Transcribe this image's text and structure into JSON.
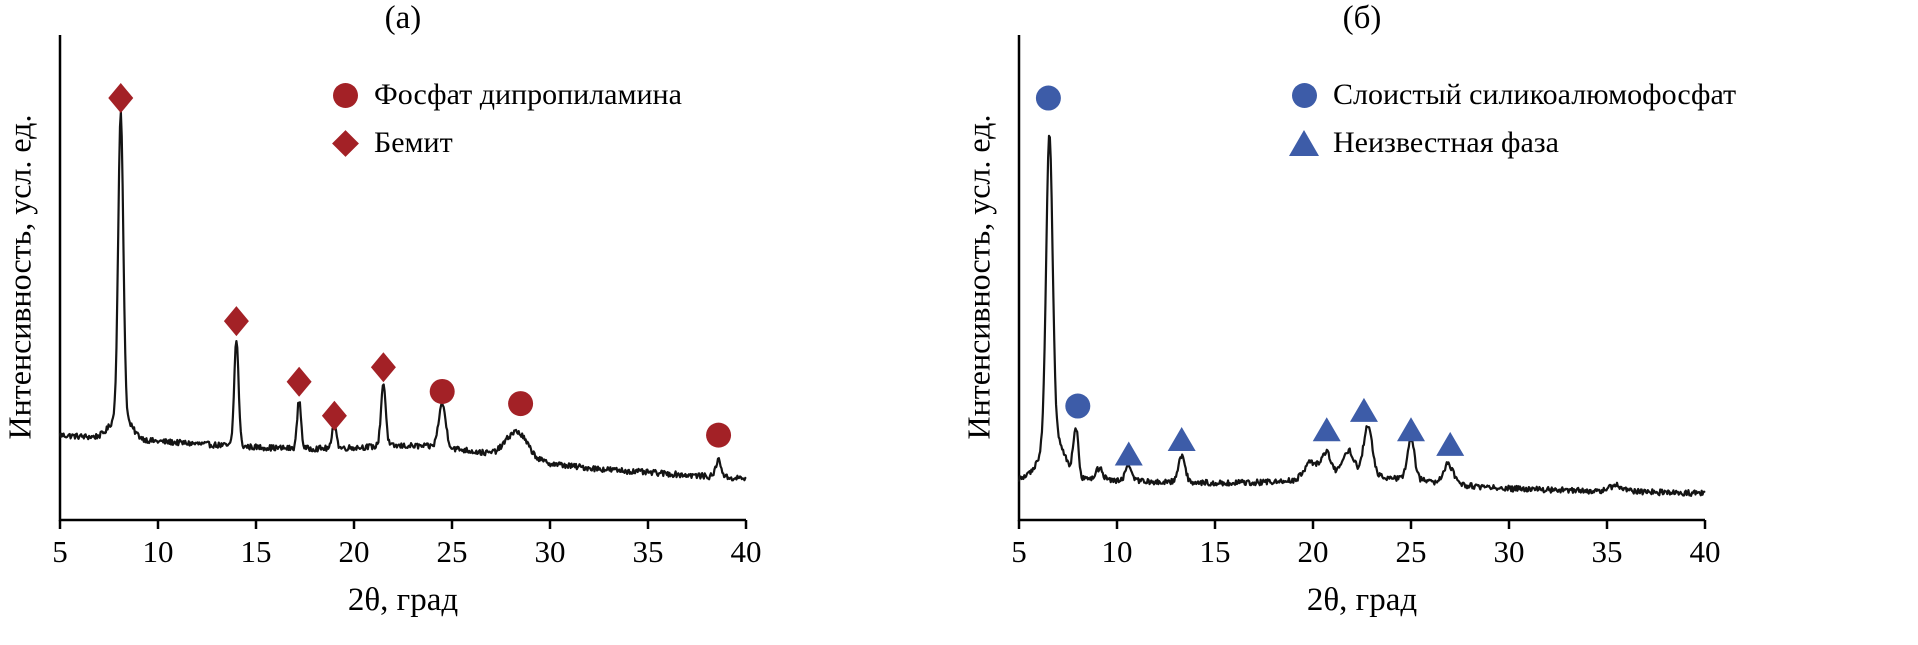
{
  "colors": {
    "red": "#a32126",
    "blue": "#3d5ca8",
    "trace": "#141414",
    "axis": "#000000"
  },
  "chart_data": [
    {
      "type": "line",
      "panel": "a",
      "title": "(а)",
      "xlabel": "2θ, град",
      "ylabel": "Интенсивность, усл. ед.",
      "xlim": [
        5,
        40
      ],
      "ylim": [
        0,
        1
      ],
      "xticks": [
        5,
        10,
        15,
        20,
        25,
        30,
        35,
        40
      ],
      "grid": false,
      "legend_loc": "upper left inside",
      "series_color_key": "red",
      "legend": [
        {
          "marker": "circle",
          "label": "Фосфат дипропиламина",
          "color_key": "red"
        },
        {
          "marker": "diamond",
          "label": "Бемит",
          "color_key": "red"
        }
      ],
      "baseline": {
        "start": 0.175,
        "end": 0.085
      },
      "noise": 0.006,
      "peaks": [
        {
          "x": 8.1,
          "h": 0.62,
          "w": 0.13
        },
        {
          "x": 8.1,
          "h": 0.05,
          "w": 0.5
        },
        {
          "x": 14.0,
          "h": 0.22,
          "w": 0.11
        },
        {
          "x": 17.2,
          "h": 0.1,
          "w": 0.1
        },
        {
          "x": 19.0,
          "h": 0.055,
          "w": 0.1
        },
        {
          "x": 21.5,
          "h": 0.13,
          "w": 0.12
        },
        {
          "x": 24.5,
          "h": 0.09,
          "w": 0.18
        },
        {
          "x": 28.3,
          "h": 0.055,
          "w": 0.55
        },
        {
          "x": 24.0,
          "h": 0.025,
          "w": 3.5
        },
        {
          "x": 38.6,
          "h": 0.035,
          "w": 0.14
        }
      ],
      "markers": [
        {
          "x": 8.1,
          "y": 0.87,
          "marker": "diamond"
        },
        {
          "x": 14.0,
          "y": 0.41,
          "marker": "diamond"
        },
        {
          "x": 17.2,
          "y": 0.285,
          "marker": "diamond"
        },
        {
          "x": 19.0,
          "y": 0.215,
          "marker": "diamond"
        },
        {
          "x": 21.5,
          "y": 0.315,
          "marker": "diamond"
        },
        {
          "x": 24.5,
          "y": 0.265,
          "marker": "circle"
        },
        {
          "x": 28.5,
          "y": 0.24,
          "marker": "circle"
        },
        {
          "x": 38.6,
          "y": 0.175,
          "marker": "circle"
        }
      ]
    },
    {
      "type": "line",
      "panel": "b",
      "title": "(б)",
      "xlabel": "2θ, град",
      "ylabel": "Интенсивность, усл. ед.",
      "xlim": [
        5,
        40
      ],
      "ylim": [
        0,
        1
      ],
      "xticks": [
        5,
        10,
        15,
        20,
        25,
        30,
        35,
        40
      ],
      "grid": false,
      "legend_loc": "upper left inside",
      "series_color_key": "blue",
      "legend": [
        {
          "marker": "circle",
          "label": "Слоистый силикоалюмофосфат",
          "color_key": "blue"
        },
        {
          "marker": "triangle",
          "label": "Неизвестная фаза",
          "color_key": "blue"
        }
      ],
      "baseline": {
        "start": 0.085,
        "end": 0.055
      },
      "noise": 0.006,
      "peaks": [
        {
          "x": 6.55,
          "h": 0.62,
          "w": 0.16
        },
        {
          "x": 6.7,
          "h": 0.1,
          "w": 0.55
        },
        {
          "x": 7.9,
          "h": 0.1,
          "w": 0.13
        },
        {
          "x": 9.1,
          "h": 0.025,
          "w": 0.18
        },
        {
          "x": 10.6,
          "h": 0.035,
          "w": 0.16
        },
        {
          "x": 13.3,
          "h": 0.055,
          "w": 0.17
        },
        {
          "x": 19.9,
          "h": 0.035,
          "w": 0.35
        },
        {
          "x": 20.7,
          "h": 0.05,
          "w": 0.25
        },
        {
          "x": 21.8,
          "h": 0.055,
          "w": 0.3
        },
        {
          "x": 22.8,
          "h": 0.105,
          "w": 0.22
        },
        {
          "x": 25.0,
          "h": 0.085,
          "w": 0.18
        },
        {
          "x": 26.9,
          "h": 0.04,
          "w": 0.25
        },
        {
          "x": 23.0,
          "h": 0.02,
          "w": 3.0
        },
        {
          "x": 35.5,
          "h": 0.012,
          "w": 0.4
        }
      ],
      "markers": [
        {
          "x": 6.5,
          "y": 0.87,
          "marker": "circle"
        },
        {
          "x": 8.0,
          "y": 0.235,
          "marker": "circle"
        },
        {
          "x": 10.6,
          "y": 0.135,
          "marker": "triangle"
        },
        {
          "x": 13.3,
          "y": 0.165,
          "marker": "triangle"
        },
        {
          "x": 20.7,
          "y": 0.185,
          "marker": "triangle"
        },
        {
          "x": 22.6,
          "y": 0.225,
          "marker": "triangle"
        },
        {
          "x": 25.0,
          "y": 0.185,
          "marker": "triangle"
        },
        {
          "x": 27.0,
          "y": 0.155,
          "marker": "triangle"
        }
      ]
    }
  ]
}
